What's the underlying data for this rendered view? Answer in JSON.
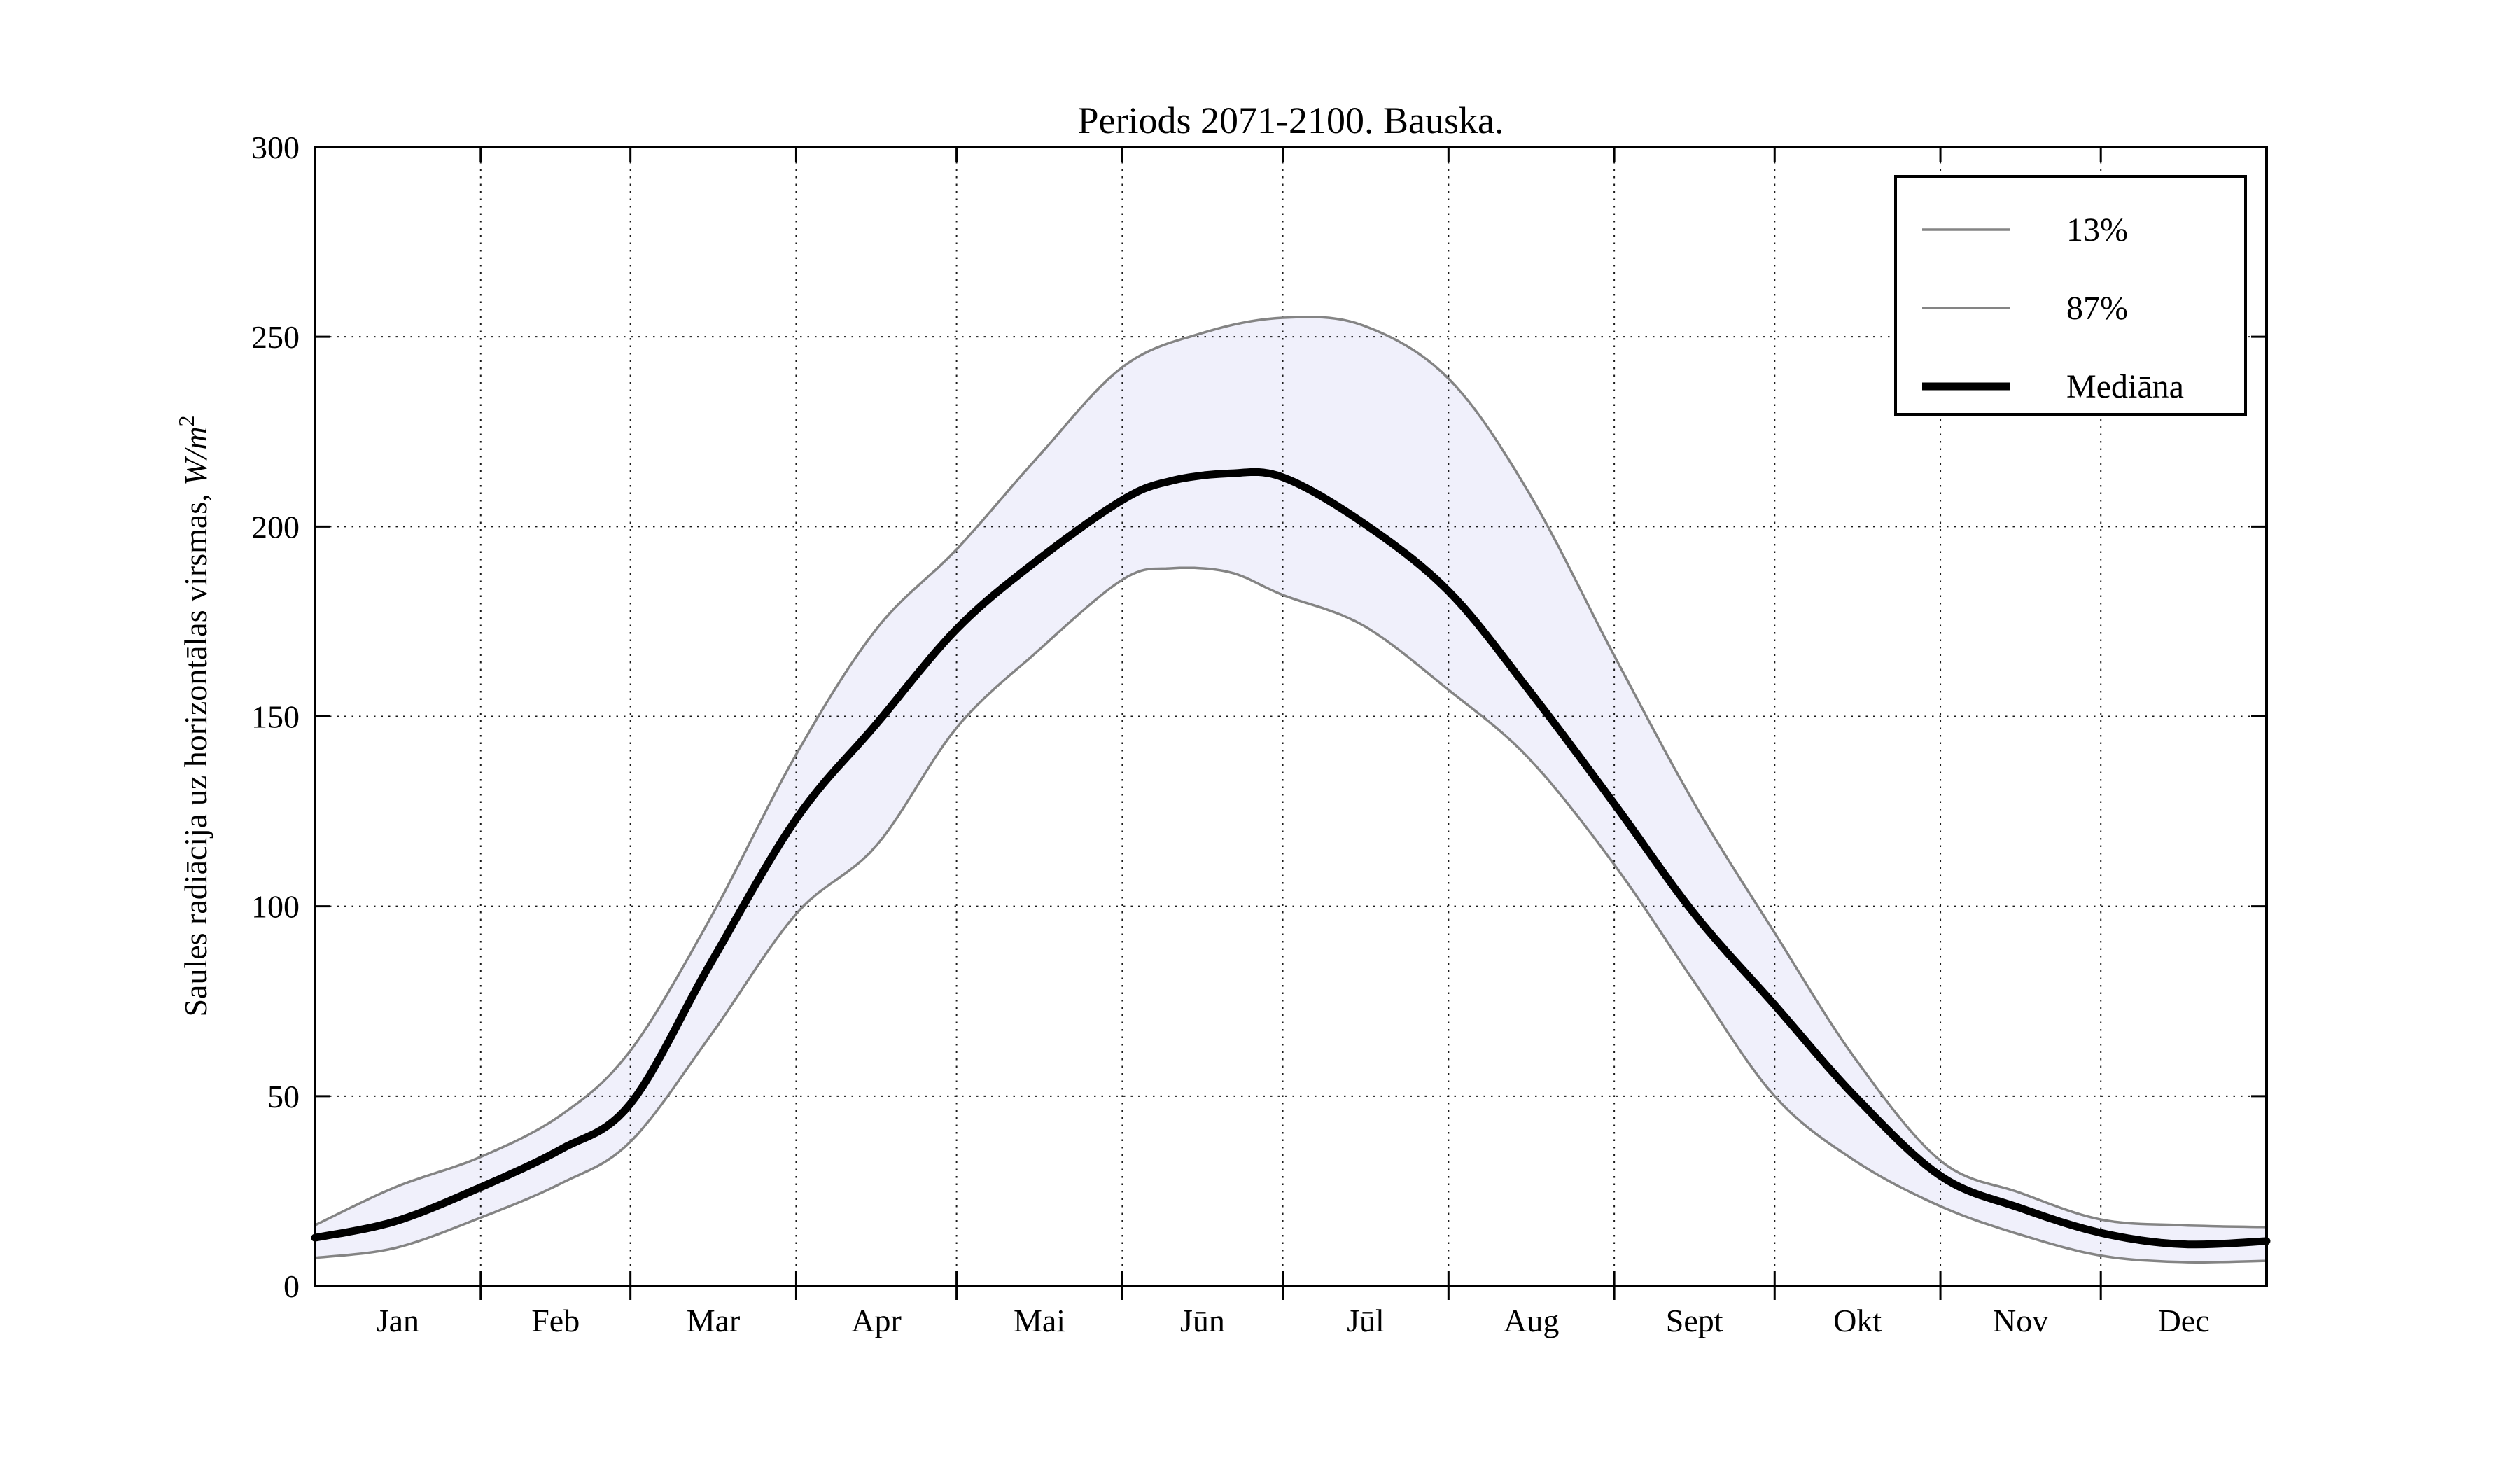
{
  "title": "Periods 2071-2100. Bauska.",
  "colors": {
    "background": "#ffffff",
    "band_fill": "#f0f0fb",
    "percentile_line": "#848484",
    "median_line": "#000000",
    "grid": "#000000",
    "spine": "#000000"
  },
  "y_axis": {
    "label_text": "Saules radiācija uz horizontālas virsmas, ",
    "label_math": "W/m",
    "label_sup": "2",
    "ticks": [
      0,
      50,
      100,
      150,
      200,
      250,
      300
    ],
    "min": 0,
    "max": 300
  },
  "x_axis": {
    "month_labels": [
      "Jan",
      "Feb",
      "Mar",
      "Apr",
      "Mai",
      "Jūn",
      "Jūl",
      "Aug",
      "Sept",
      "Okt",
      "Nov",
      "Dec"
    ],
    "month_days": [
      31,
      28,
      31,
      30,
      31,
      30,
      31,
      31,
      30,
      31,
      30,
      31
    ]
  },
  "legend": {
    "items": [
      {
        "label": "13%",
        "color": "#848484",
        "line_width": 3.5
      },
      {
        "label": "87%",
        "color": "#848484",
        "line_width": 3.5
      },
      {
        "label": "Mediāna",
        "color": "#000000",
        "line_width": 11
      }
    ]
  },
  "chart_data": {
    "type": "line",
    "title": "Periods 2071-2100. Bauska.",
    "xlabel": "",
    "ylabel": "Saules radiācija uz horizontālas virsmas, W/m²",
    "x_unit": "day_of_year",
    "y_unit": "W/m²",
    "ylim": [
      0,
      300
    ],
    "grid": true,
    "legend_position": "upper right",
    "band": {
      "between": [
        "13%",
        "87%"
      ],
      "fill": "#f0f0fb"
    },
    "series": [
      {
        "name": "13%",
        "role": "lower_percentile",
        "points": [
          [
            0,
            7.4
          ],
          [
            15,
            10
          ],
          [
            31,
            18
          ],
          [
            46,
            27
          ],
          [
            59,
            38
          ],
          [
            74,
            66
          ],
          [
            90,
            98
          ],
          [
            105,
            116
          ],
          [
            120,
            147
          ],
          [
            135,
            167
          ],
          [
            151,
            186
          ],
          [
            160,
            189
          ],
          [
            171,
            188
          ],
          [
            181,
            182
          ],
          [
            196,
            174
          ],
          [
            212,
            157
          ],
          [
            227,
            139
          ],
          [
            243,
            111
          ],
          [
            258,
            80
          ],
          [
            273,
            50
          ],
          [
            288,
            33
          ],
          [
            304,
            21
          ],
          [
            319,
            13.5
          ],
          [
            334,
            8
          ],
          [
            349,
            6.3
          ],
          [
            365,
            6.6
          ]
        ]
      },
      {
        "name": "87%",
        "role": "upper_percentile",
        "points": [
          [
            0,
            16
          ],
          [
            15,
            26
          ],
          [
            31,
            34
          ],
          [
            46,
            45
          ],
          [
            59,
            62
          ],
          [
            74,
            97
          ],
          [
            90,
            140
          ],
          [
            105,
            173
          ],
          [
            120,
            194
          ],
          [
            135,
            218
          ],
          [
            151,
            242
          ],
          [
            166,
            251
          ],
          [
            181,
            255
          ],
          [
            196,
            253
          ],
          [
            212,
            239
          ],
          [
            227,
            209
          ],
          [
            243,
            166
          ],
          [
            258,
            127
          ],
          [
            273,
            93
          ],
          [
            288,
            60
          ],
          [
            304,
            33
          ],
          [
            319,
            24.5
          ],
          [
            334,
            17.5
          ],
          [
            349,
            16
          ],
          [
            365,
            15.5
          ]
        ]
      },
      {
        "name": "Mediāna",
        "role": "median",
        "points": [
          [
            0,
            12.7
          ],
          [
            15,
            17
          ],
          [
            31,
            26
          ],
          [
            46,
            36
          ],
          [
            59,
            48
          ],
          [
            74,
            85
          ],
          [
            90,
            123
          ],
          [
            105,
            148
          ],
          [
            120,
            173
          ],
          [
            135,
            191
          ],
          [
            151,
            207
          ],
          [
            160,
            212
          ],
          [
            171,
            214
          ],
          [
            181,
            213
          ],
          [
            196,
            201
          ],
          [
            212,
            183
          ],
          [
            227,
            157
          ],
          [
            243,
            127
          ],
          [
            258,
            98
          ],
          [
            273,
            74
          ],
          [
            288,
            50
          ],
          [
            304,
            29
          ],
          [
            319,
            20.5
          ],
          [
            334,
            14
          ],
          [
            349,
            11
          ],
          [
            365,
            11.8
          ]
        ]
      }
    ]
  }
}
